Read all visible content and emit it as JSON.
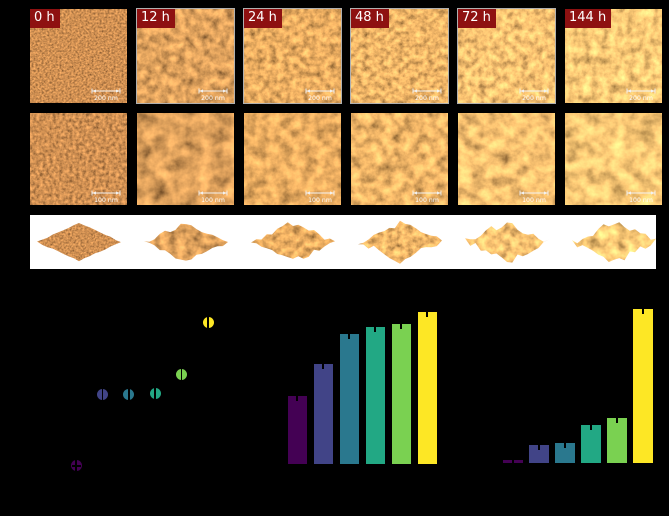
{
  "afm": {
    "times": [
      "0 h",
      "12 h",
      "24 h",
      "48 h",
      "72 h",
      "144 h"
    ],
    "row1_scalebar_label": "200 nm",
    "row2_scalebar_label": "100 nm",
    "label_bg_color": "#8e1111",
    "label_text_color": "#ffffff"
  },
  "colors": {
    "background": "#000000",
    "strip_background": "#ffffff",
    "viridis": [
      "#440154",
      "#414487",
      "#2a788e",
      "#22a884",
      "#7ad151",
      "#fde725"
    ]
  },
  "chart_data": [
    {
      "type": "scatter",
      "panel": "bottom-left",
      "categories": [
        "0 h",
        "12 h",
        "24 h",
        "48 h",
        "72 h",
        "144 h"
      ],
      "values_relative": [
        0.03,
        0.44,
        0.44,
        0.45,
        0.56,
        0.86
      ],
      "colors": [
        "#440154",
        "#414487",
        "#2a788e",
        "#22a884",
        "#7ad151",
        "#fde725"
      ],
      "error_bars": true,
      "axis_text_visible": false
    },
    {
      "type": "bar",
      "panel": "bottom-middle",
      "categories": [
        "0 h",
        "12 h",
        "24 h",
        "48 h",
        "72 h",
        "144 h"
      ],
      "values_relative": [
        0.4,
        0.59,
        0.77,
        0.81,
        0.83,
        0.9
      ],
      "colors": [
        "#440154",
        "#414487",
        "#2a788e",
        "#22a884",
        "#7ad151",
        "#fde725"
      ],
      "error_bars": true,
      "axis_text_visible": false
    },
    {
      "type": "bar",
      "panel": "bottom-right",
      "categories": [
        "0 h",
        "12 h",
        "24 h",
        "48 h",
        "72 h",
        "144 h"
      ],
      "values_relative": [
        0.02,
        0.11,
        0.12,
        0.23,
        0.27,
        0.92
      ],
      "colors": [
        "#440154",
        "#414487",
        "#2a788e",
        "#22a884",
        "#7ad151",
        "#fde725"
      ],
      "error_bars": true,
      "axis_text_visible": false
    }
  ]
}
